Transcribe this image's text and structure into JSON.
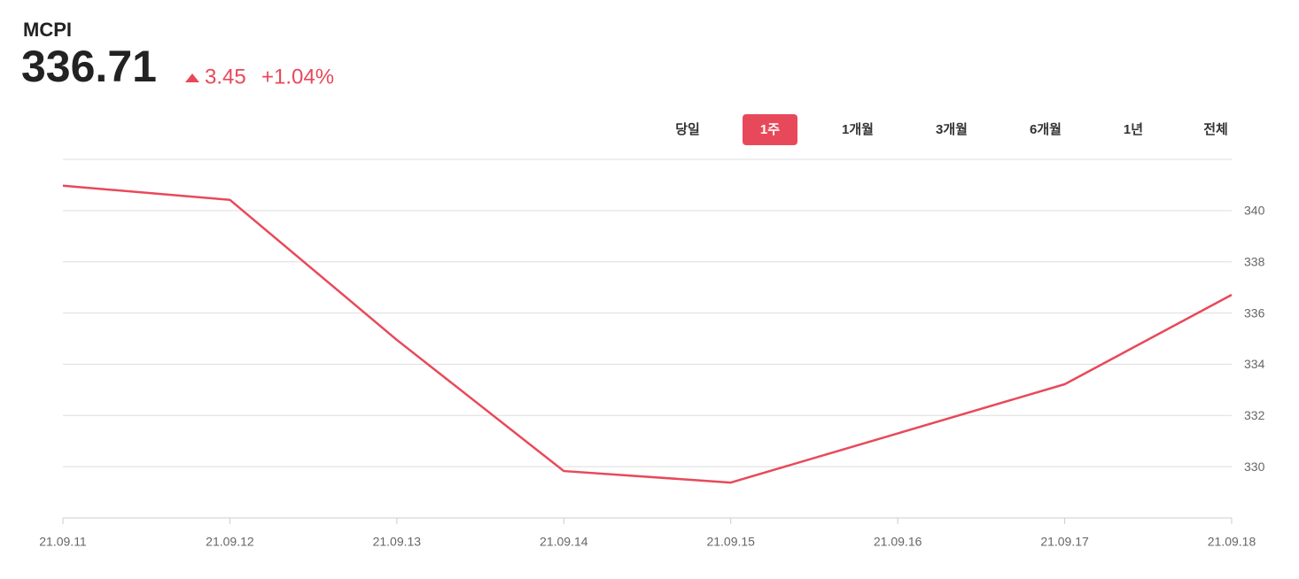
{
  "header": {
    "name": "MCPI",
    "price": "336.71",
    "change": "3.45",
    "change_percent": "+1.04%"
  },
  "tabs": [
    "당일",
    "1주",
    "1개월",
    "3개월",
    "6개월",
    "1년",
    "전체"
  ],
  "active_tab": 1,
  "chart_data": {
    "type": "line",
    "categories": [
      "21.09.11",
      "21.09.12",
      "21.09.13",
      "21.09.14",
      "21.09.15",
      "21.09.16",
      "21.09.17",
      "21.09.18"
    ],
    "values": [
      340.97,
      340.42,
      334.95,
      329.83,
      329.38,
      331.3,
      333.22,
      336.71
    ],
    "color": "#e8495a",
    "ylim": [
      328,
      342
    ],
    "yticks": [
      330,
      332,
      334,
      336,
      338,
      340
    ],
    "grid": true
  }
}
